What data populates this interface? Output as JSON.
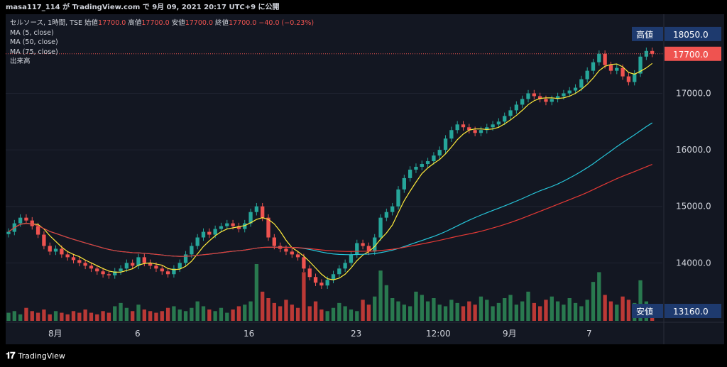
{
  "header": {
    "text": "masa117_114 が TradingView.com で 9月 09, 2021 20:17 UTC+9 に公開"
  },
  "legend": {
    "main_prefix": "セルソース, 1時間, TSE",
    "open_label": "始値",
    "open_value": "17700.0",
    "high_label": "高値",
    "high_value": "17700.0",
    "low_label": "安値",
    "low_value": "17700.0",
    "close_label": "終値",
    "close_value": "17700.0",
    "change": "−40.0 (−0.23%)",
    "ma5": "MA (5, close)",
    "ma50": "MA (50, close)",
    "ma75": "MA (75, close)",
    "volume": "出来高"
  },
  "footer": {
    "brand": "TradingView"
  },
  "colors": {
    "up": "#26a69a",
    "down": "#ef5350",
    "ma5": "#ffeb3b",
    "ma50": "#26c6da",
    "ma75": "#e53935"
  },
  "chart_data": {
    "type": "candlestick",
    "y_ticks": [
      "18050.0",
      "17700.0",
      "17000.0",
      "16000.0",
      "15000.0",
      "14000.0",
      "13160.0"
    ],
    "x_ticks": [
      "8月",
      "6",
      "16",
      "23",
      "12:00",
      "9月",
      "7"
    ],
    "ylim": [
      13100,
      18300
    ],
    "high_label": "高値",
    "high_value": "18050.0",
    "last_value": "17700.0",
    "low_label": "安値",
    "low_value": "13160.0",
    "closes": [
      14550,
      14700,
      14800,
      14750,
      14650,
      14500,
      14300,
      14200,
      14250,
      14150,
      14100,
      14050,
      14000,
      13950,
      13900,
      13850,
      13800,
      13780,
      13850,
      13900,
      14000,
      13950,
      14100,
      14000,
      13950,
      13900,
      13850,
      13800,
      13900,
      14000,
      14150,
      14300,
      14450,
      14550,
      14500,
      14600,
      14650,
      14700,
      14650,
      14600,
      14700,
      14900,
      15000,
      14800,
      14450,
      14300,
      14250,
      14200,
      14150,
      14100,
      13900,
      13750,
      13650,
      13600,
      13700,
      13800,
      13900,
      14000,
      14150,
      14350,
      14300,
      14200,
      14450,
      14800,
      14900,
      15000,
      15300,
      15500,
      15650,
      15700,
      15750,
      15800,
      15900,
      16000,
      16200,
      16350,
      16450,
      16400,
      16350,
      16300,
      16350,
      16400,
      16450,
      16500,
      16600,
      16700,
      16800,
      16900,
      17000,
      16950,
      16900,
      16850,
      16900,
      16950,
      17000,
      17050,
      17100,
      17250,
      17400,
      17550,
      17700,
      17500,
      17400,
      17450,
      17300,
      17200,
      17350,
      17650,
      17750,
      17700
    ],
    "volume": [
      5,
      6,
      4,
      8,
      6,
      5,
      7,
      4,
      6,
      5,
      4,
      6,
      5,
      7,
      5,
      4,
      6,
      5,
      9,
      11,
      8,
      6,
      10,
      7,
      6,
      5,
      6,
      8,
      9,
      7,
      6,
      8,
      12,
      9,
      7,
      6,
      8,
      5,
      7,
      9,
      10,
      12,
      35,
      18,
      14,
      11,
      9,
      13,
      10,
      8,
      30,
      9,
      12,
      7,
      6,
      8,
      11,
      9,
      7,
      6,
      13,
      10,
      15,
      31,
      22,
      14,
      12,
      10,
      9,
      18,
      16,
      12,
      14,
      10,
      9,
      13,
      11,
      9,
      12,
      10,
      15,
      13,
      9,
      11,
      14,
      16,
      10,
      12,
      18,
      11,
      9,
      13,
      15,
      12,
      10,
      14,
      11,
      9,
      13,
      24,
      30,
      16,
      12,
      10,
      15,
      13,
      11,
      25,
      12,
      9
    ]
  }
}
